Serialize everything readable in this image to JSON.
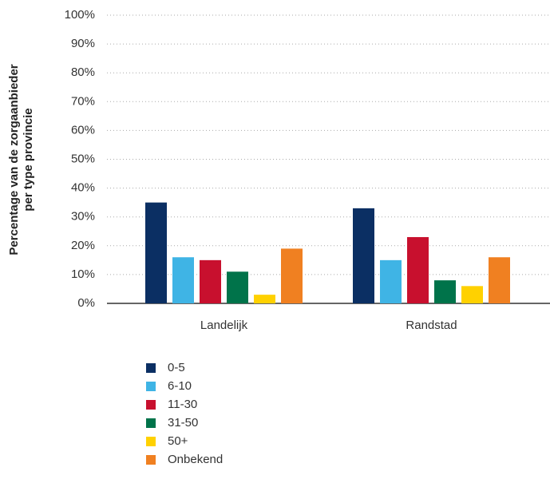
{
  "chart_data": {
    "type": "bar",
    "y_label": [
      "Percentage van de zorgaanbieder",
      "per type provincie"
    ],
    "categories": [
      "Landelijk",
      "Randstad"
    ],
    "series": [
      {
        "name": "0-5",
        "color": "#0b2f63",
        "values": [
          35,
          33
        ]
      },
      {
        "name": "6-10",
        "color": "#3fb4e5",
        "values": [
          16,
          15
        ]
      },
      {
        "name": "11-30",
        "color": "#c8102e",
        "values": [
          15,
          23
        ]
      },
      {
        "name": "31-50",
        "color": "#00734a",
        "values": [
          11,
          8
        ]
      },
      {
        "name": "50+",
        "color": "#ffd100",
        "values": [
          3,
          6
        ]
      },
      {
        "name": "Onbekend",
        "color": "#f08021",
        "values": [
          19,
          16
        ]
      }
    ],
    "ylim": [
      0,
      100
    ],
    "yticks": [
      {
        "value": 0,
        "label": "0%"
      },
      {
        "value": 10,
        "label": "10%"
      },
      {
        "value": 20,
        "label": "20%"
      },
      {
        "value": 30,
        "label": "30%"
      },
      {
        "value": 40,
        "label": "40%"
      },
      {
        "value": 50,
        "label": "50%"
      },
      {
        "value": 60,
        "label": "60%"
      },
      {
        "value": 70,
        "label": "70%"
      },
      {
        "value": 80,
        "label": "80%"
      },
      {
        "value": 90,
        "label": "90%"
      },
      {
        "value": 100,
        "label": "100%"
      }
    ],
    "grid": true,
    "legend": "bottom"
  }
}
